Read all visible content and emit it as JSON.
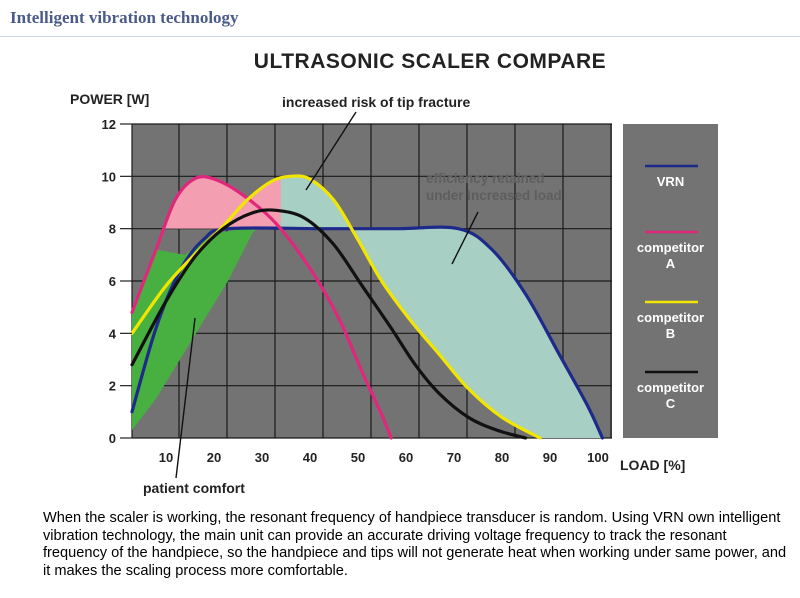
{
  "header": {
    "brand": "Intelligent vibration technology"
  },
  "caption": "When the scaler is working, the resonant frequency of handpiece transducer is random. Using VRN own intelligent vibration technology, the main unit can provide an accurate driving voltage frequency to track the resonant frequency of the handpiece, so the handpiece and tips will not generate heat when working under same power, and it makes the scaling process more comfortable.",
  "chart_data": {
    "type": "line",
    "title": "ULTRASONIC SCALER COMPARE",
    "ylabel": "POWER [W]",
    "xlabel": "LOAD [%]",
    "xlim": [
      5,
      105
    ],
    "ylim": [
      0,
      12
    ],
    "xticks": [
      "10",
      "20",
      "30",
      "40",
      "50",
      "60",
      "70",
      "80",
      "90",
      "100"
    ],
    "yticks": [
      "0",
      "2",
      "4",
      "6",
      "8",
      "10",
      "12"
    ],
    "grid": true,
    "background": "#737373",
    "legend_position": "right",
    "legend_background": "#737373",
    "series": [
      {
        "name": "VRN",
        "color": "#1e2a8a",
        "points": [
          [
            5,
            1
          ],
          [
            10,
            4.2
          ],
          [
            15,
            6.4
          ],
          [
            20,
            7.6
          ],
          [
            25,
            8
          ],
          [
            45,
            8
          ],
          [
            60,
            8
          ],
          [
            73,
            8
          ],
          [
            80,
            7.2
          ],
          [
            87,
            5.5
          ],
          [
            94,
            3.2
          ],
          [
            100,
            1.2
          ],
          [
            103,
            0
          ]
        ]
      },
      {
        "name": "competitor\nA",
        "color": "#e0277b",
        "points": [
          [
            5,
            4.8
          ],
          [
            10,
            7.2
          ],
          [
            14,
            9.1
          ],
          [
            18,
            9.9
          ],
          [
            22,
            9.9
          ],
          [
            28,
            9.3
          ],
          [
            35,
            8.2
          ],
          [
            42,
            6.5
          ],
          [
            48,
            4.6
          ],
          [
            53,
            2.5
          ],
          [
            57,
            0.9
          ],
          [
            59,
            0
          ]
        ]
      },
      {
        "name": "competitor\nB",
        "color": "#f2e600",
        "points": [
          [
            5,
            4
          ],
          [
            12,
            5.8
          ],
          [
            18,
            7
          ],
          [
            24,
            8.1
          ],
          [
            29,
            9.1
          ],
          [
            34,
            9.8
          ],
          [
            38,
            10
          ],
          [
            42,
            9.9
          ],
          [
            47,
            9.1
          ],
          [
            52,
            7.6
          ],
          [
            57,
            6
          ],
          [
            63,
            4.5
          ],
          [
            69,
            3.2
          ],
          [
            75,
            1.9
          ],
          [
            82,
            0.8
          ],
          [
            90,
            0
          ]
        ]
      },
      {
        "name": "competitor\nC",
        "color": "#111111",
        "points": [
          [
            5,
            2.8
          ],
          [
            12,
            5.2
          ],
          [
            18,
            6.9
          ],
          [
            24,
            8
          ],
          [
            30,
            8.6
          ],
          [
            35,
            8.7
          ],
          [
            41,
            8.4
          ],
          [
            47,
            7.4
          ],
          [
            53,
            5.8
          ],
          [
            59,
            4.2
          ],
          [
            64,
            2.8
          ],
          [
            69,
            1.7
          ],
          [
            75,
            0.8
          ],
          [
            81,
            0.3
          ],
          [
            87,
            0
          ]
        ]
      }
    ],
    "annotations": [
      {
        "id": "tip-fracture",
        "text": "increased risk of tip fracture"
      },
      {
        "id": "efficiency",
        "text": "efficiency retained\nunder increased load"
      },
      {
        "id": "comfort",
        "text": "patient comfort"
      }
    ],
    "regions": {
      "pink_color": "#f49fb1",
      "green_color": "#48b040",
      "teal_color": "#a8cfc4"
    }
  }
}
